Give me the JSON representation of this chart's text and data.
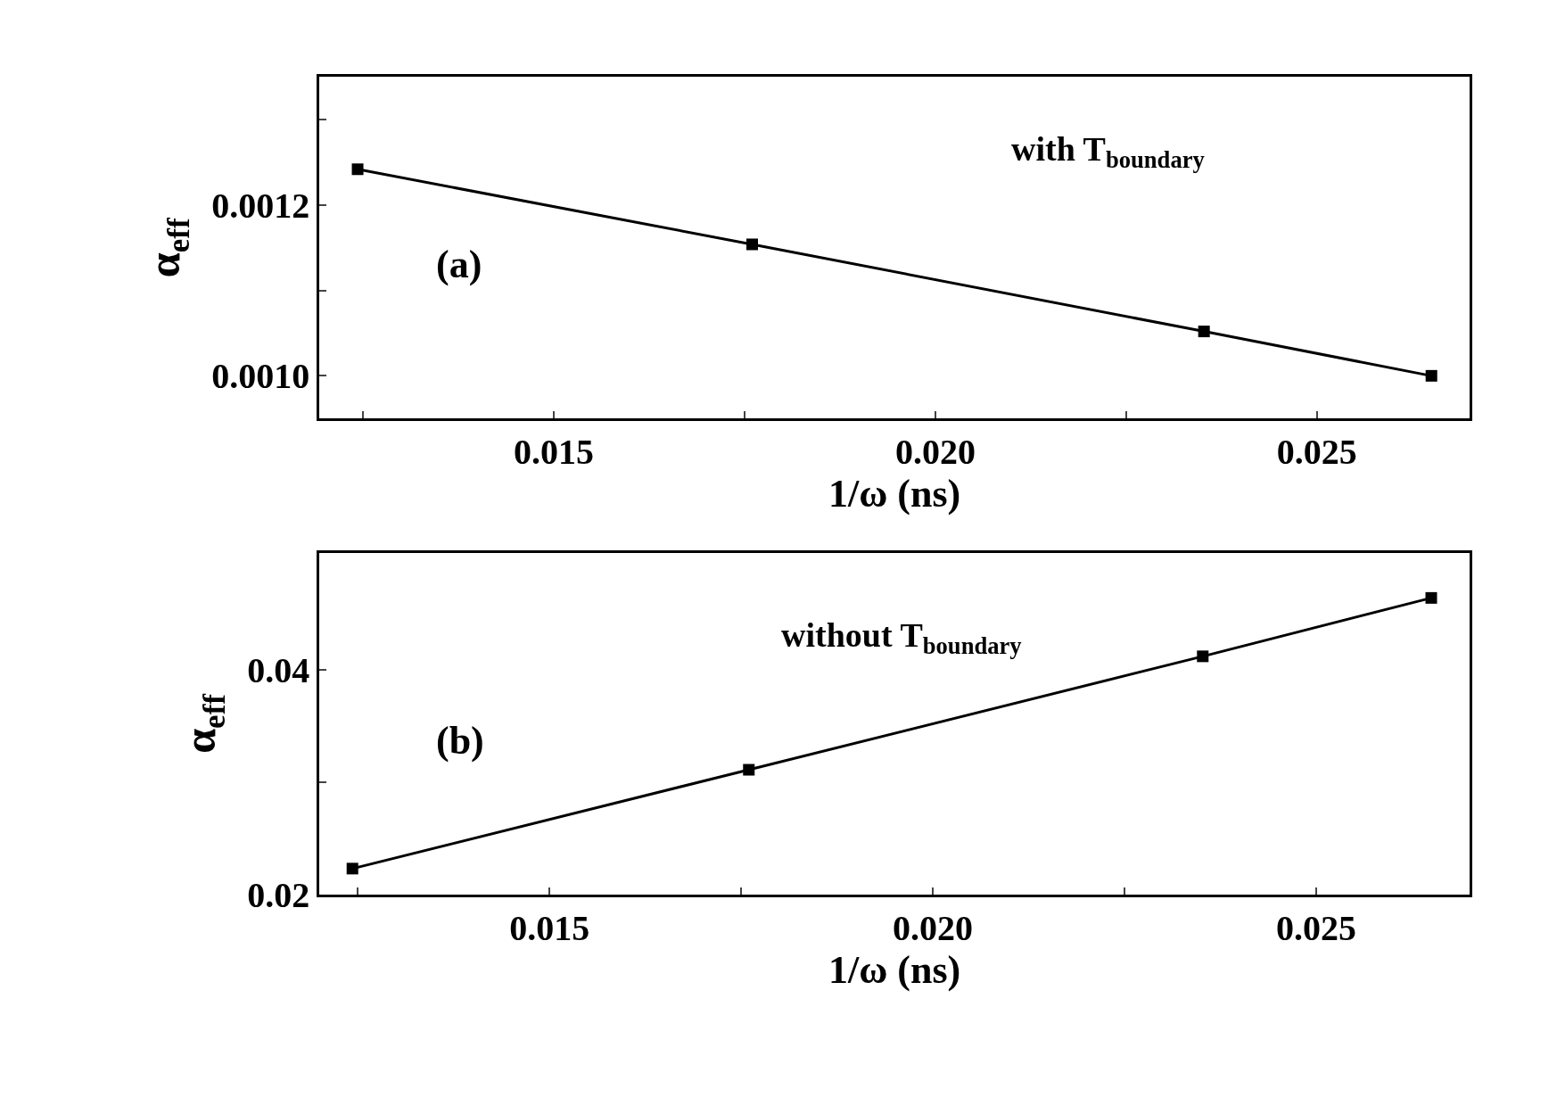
{
  "chart_data": [
    {
      "type": "line",
      "xlabel": "1/ω (ns)",
      "ylabel": "α$_{eff}$",
      "annotations": [
        "with T$_{boundary}$",
        "(a)"
      ],
      "marker": "square",
      "line_style": "solid",
      "x": [
        0.01243,
        0.0176,
        0.02352,
        0.0265
      ],
      "series": [
        {
          "color": "#000000",
          "values": [
            0.001242,
            0.001154,
            0.001052,
            0.001
          ]
        }
      ],
      "xlim": [
        0.01193,
        0.027
      ],
      "xticks": [
        {
          "value": 0.0125,
          "label": null
        },
        {
          "value": 0.015,
          "label": "0.015"
        },
        {
          "value": 0.0175,
          "label": null
        },
        {
          "value": 0.02,
          "label": "0.020"
        },
        {
          "value": 0.0225,
          "label": null
        },
        {
          "value": 0.025,
          "label": "0.025"
        }
      ],
      "ylim": [
        0.00095,
        0.00135
      ],
      "yticks": [
        {
          "value": 0.001,
          "label": "0.0010"
        },
        {
          "value": 0.0011,
          "label": null
        },
        {
          "value": 0.0012,
          "label": "0.0012"
        },
        {
          "value": 0.0013,
          "label": null
        }
      ]
    },
    {
      "type": "line",
      "xlabel": "1/ω (ns)",
      "ylabel": "α$_{eff}$",
      "annotations": [
        "without T$_{boundary}$",
        "(b)"
      ],
      "marker": "square",
      "line_style": "solid",
      "x": [
        0.01243,
        0.0176,
        0.02352,
        0.0265
      ],
      "series": [
        {
          "color": "#000000",
          "values": [
            0.0223,
            0.0311,
            0.0412,
            0.0464
          ]
        }
      ],
      "xlim": [
        0.012,
        0.027
      ],
      "xticks": [
        {
          "value": 0.0125,
          "label": null
        },
        {
          "value": 0.015,
          "label": "0.015"
        },
        {
          "value": 0.0175,
          "label": null
        },
        {
          "value": 0.02,
          "label": "0.020"
        },
        {
          "value": 0.0225,
          "label": null
        },
        {
          "value": 0.025,
          "label": "0.025"
        }
      ],
      "ylim": [
        0.02,
        0.0504
      ],
      "yticks": [
        {
          "value": 0.02,
          "label": "0.02"
        },
        {
          "value": 0.03,
          "label": null
        },
        {
          "value": 0.04,
          "label": "0.04"
        }
      ]
    }
  ]
}
